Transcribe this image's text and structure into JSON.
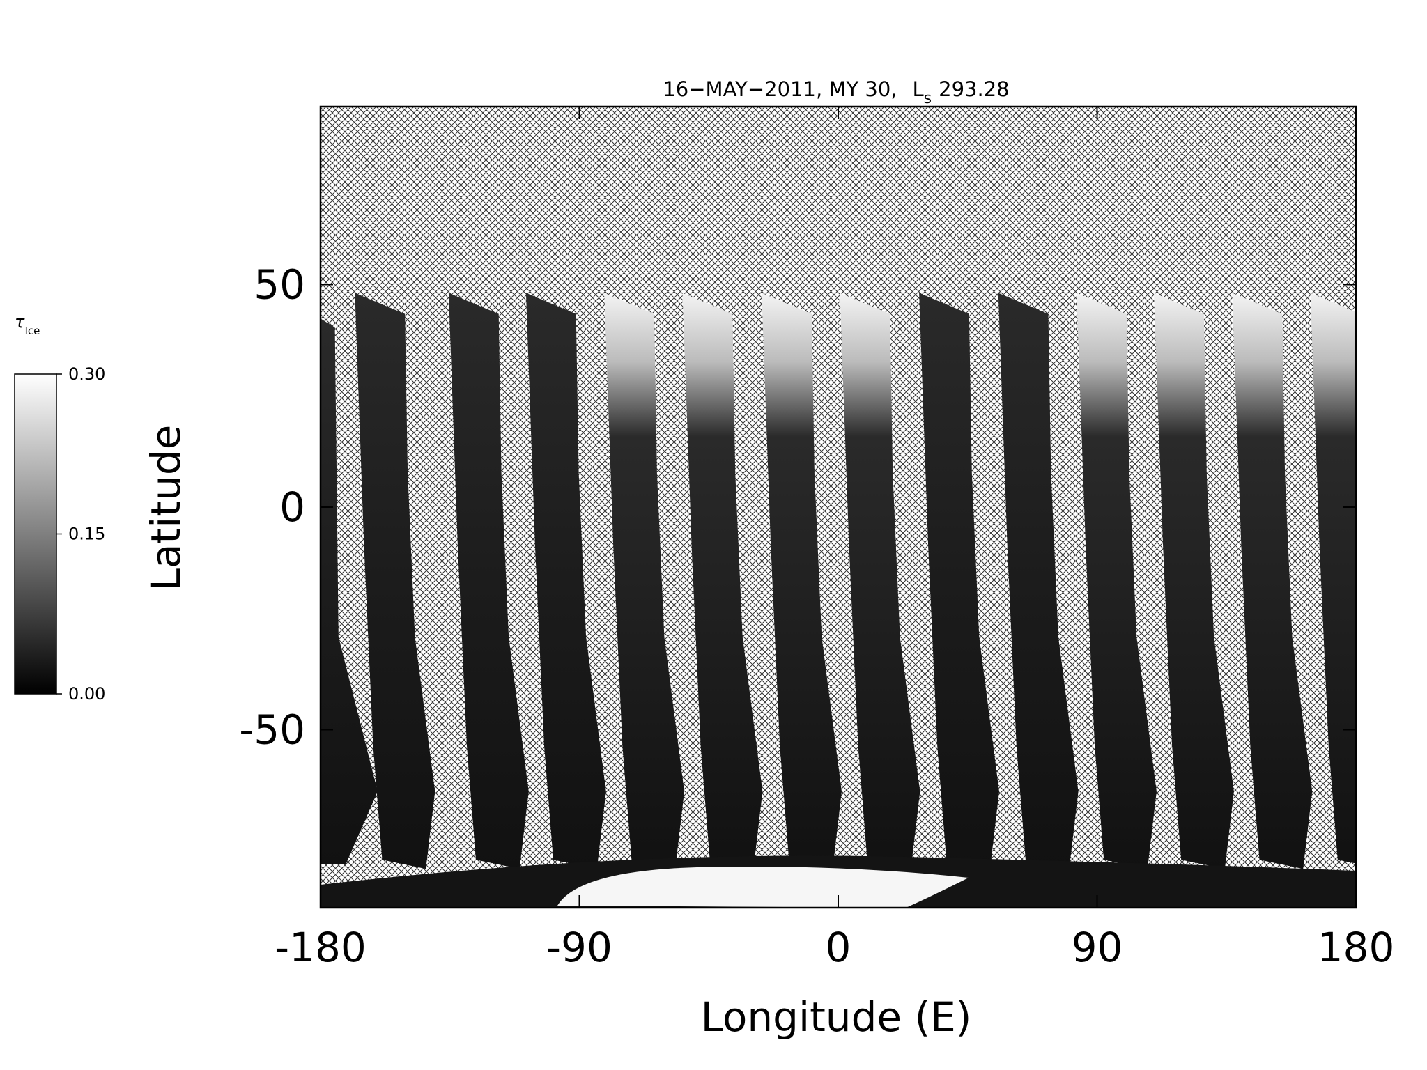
{
  "chart_data": {
    "type": "heatmap",
    "title": {
      "text": "16−MAY−2011, MY 30,",
      "ls_symbol": "L",
      "ls_subscript": "s",
      "ls_value": 293.28
    },
    "xlabel": "Longitude (E)",
    "ylabel": "Latitude",
    "xlim": [
      -180,
      180
    ],
    "xticks": [
      -180,
      -90,
      0,
      90,
      180
    ],
    "ylim": [
      -90,
      90
    ],
    "yticks": [
      -50,
      0,
      50
    ],
    "colorbar": {
      "label": "τ",
      "label_subscript": "Ice",
      "lim": [
        0,
        0.3
      ],
      "ticks": [
        {
          "value": 0,
          "label": "0.00"
        },
        {
          "value": 0.15,
          "label": "0.15"
        },
        {
          "value": 0.3,
          "label": "0.30"
        }
      ],
      "colors": [
        "#000000",
        "#ffffff"
      ]
    }
  }
}
